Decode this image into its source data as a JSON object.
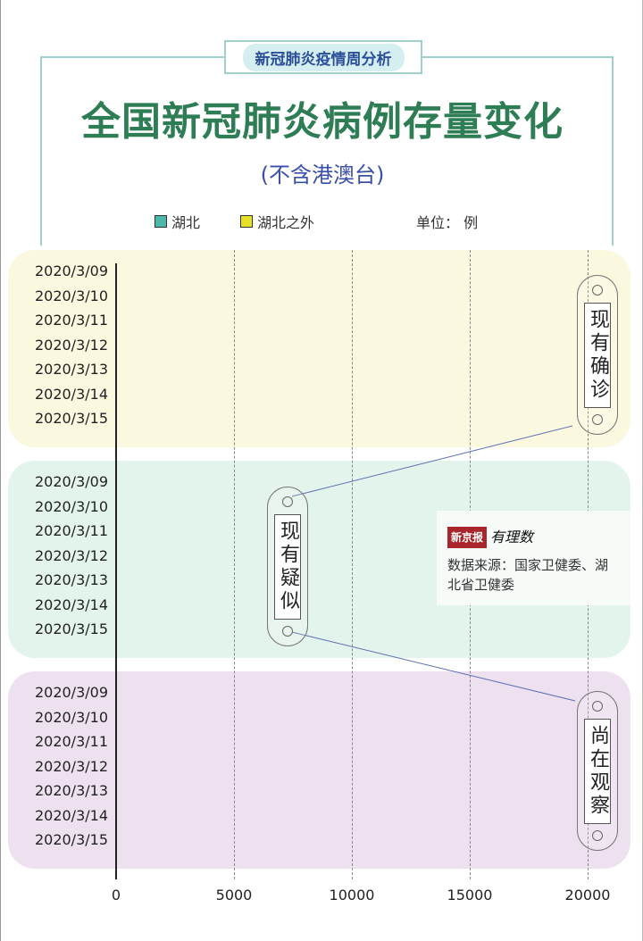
{
  "header": {
    "badge": "新冠肺炎疫情周分析",
    "title": "全国新冠肺炎病例存量变化",
    "subtitle": "(不含港澳台)",
    "unit": "单位： 例"
  },
  "colors": {
    "hubei": "#4bb8a9",
    "outside": "#e8e027",
    "title": "#2e7d55",
    "panel_confirmed": "#fbf8e0",
    "panel_suspected": "#e3f4ec",
    "panel_observed": "#ede1f0"
  },
  "source": {
    "logo_newspaper": "新京报",
    "logo_column": "有理数",
    "text": "数据来源：国家卫健委、湖北省卫健委"
  },
  "chart_data": {
    "type": "bar",
    "orientation": "horizontal",
    "stacked": true,
    "categories": [
      "2020/3/09",
      "2020/3/10",
      "2020/3/11",
      "2020/3/12",
      "2020/3/13",
      "2020/3/14",
      "2020/3/15"
    ],
    "legend": [
      "湖北",
      "湖北之外"
    ],
    "panels": [
      {
        "label": "现有确诊"
      },
      {
        "label": "现有疑似"
      },
      {
        "label": "尚在观察"
      }
    ],
    "xlim": [
      0,
      20000
    ],
    "xticks": [
      "0",
      "5000",
      "10000",
      "15000",
      "20000"
    ],
    "grid": "vertical dashed"
  }
}
